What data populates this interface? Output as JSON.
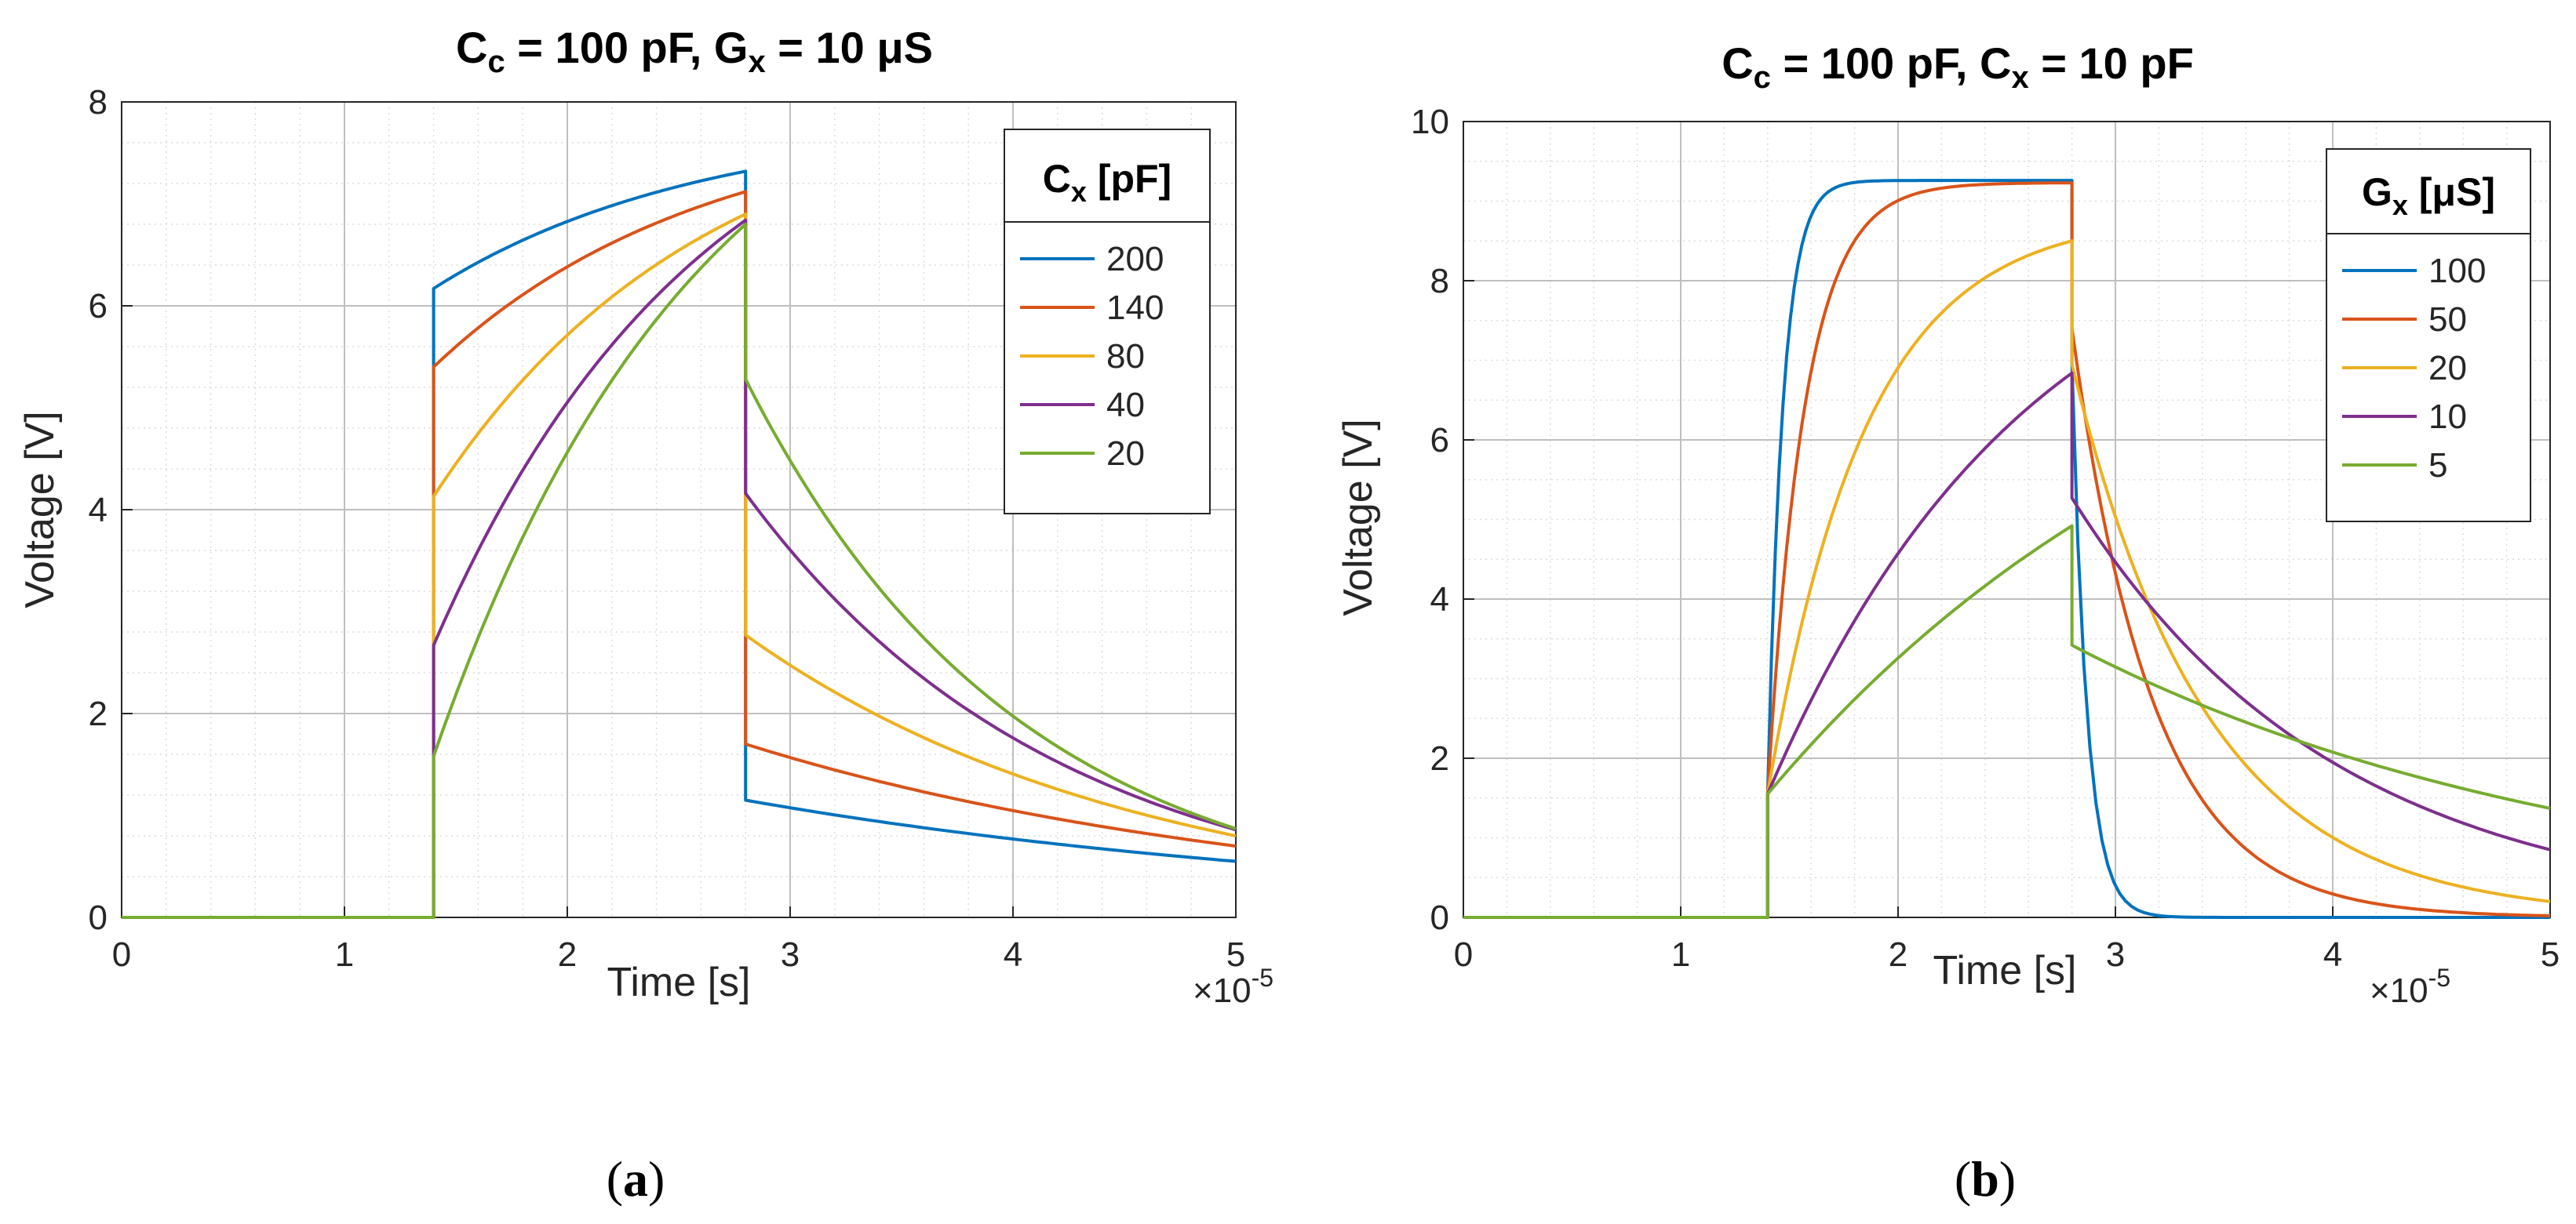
{
  "chart_data": [
    {
      "type": "line",
      "title": {
        "main": "C",
        "sub1": "c",
        "mid": " = 100 pF, G",
        "sub2": "x",
        "end": " = 10 μS"
      },
      "xlabel": "Time [s]",
      "ylabel": "Voltage [V]",
      "xlim": [
        0,
        5
      ],
      "ylim": [
        0,
        8
      ],
      "xticks": [
        "0",
        "1",
        "2",
        "3",
        "4",
        "5"
      ],
      "yticks": [
        "0",
        "2",
        "4",
        "6",
        "8"
      ],
      "exponent": {
        "base": "×10",
        "power": "-5"
      },
      "legend": {
        "title_main": "C",
        "title_sub": "x",
        "title_end": " [pF]",
        "location": "top-right"
      },
      "caption": {
        "open": "(",
        "letter": "a",
        "close": ")"
      },
      "pulse": {
        "t_on": 1.4,
        "t_off": 2.8
      },
      "series": [
        {
          "name": "200",
          "color": "#0072BD",
          "jump_on": 6.17,
          "peak": 7.32,
          "drop": 1.15,
          "end": 0.55
        },
        {
          "name": "140",
          "color": "#D95319",
          "jump_on": 5.4,
          "peak": 7.12,
          "drop": 1.7,
          "end": 0.7
        },
        {
          "name": "80",
          "color": "#EDB120",
          "jump_on": 4.13,
          "peak": 6.9,
          "drop": 2.77,
          "end": 0.8
        },
        {
          "name": "40",
          "color": "#7E2F8E",
          "jump_on": 2.67,
          "peak": 6.84,
          "drop": 4.16,
          "end": 0.86
        },
        {
          "name": "20",
          "color": "#77AC30",
          "jump_on": 1.58,
          "peak": 6.8,
          "drop": 5.28,
          "end": 0.87
        }
      ]
    },
    {
      "type": "line",
      "title": {
        "main": "C",
        "sub1": "c",
        "mid": " = 100 pF, C",
        "sub2": "x",
        "end": " = 10 pF"
      },
      "xlabel": "Time [s]",
      "ylabel": "Voltage [V]",
      "xlim": [
        0,
        5
      ],
      "ylim": [
        0,
        10
      ],
      "xticks": [
        "0",
        "1",
        "2",
        "3",
        "4",
        "5"
      ],
      "yticks": [
        "0",
        "2",
        "4",
        "6",
        "8",
        "10"
      ],
      "exponent": {
        "base": "×10",
        "power": "-5"
      },
      "legend": {
        "title_main": "G",
        "title_sub": "x",
        "title_end": " [μS]",
        "location": "top-right"
      },
      "caption": {
        "open": "(",
        "letter": "b",
        "close": ")"
      },
      "pulse": {
        "t_on": 1.4,
        "t_off": 2.8
      },
      "series": [
        {
          "name": "100",
          "color": "#0072BD",
          "jump_on": 1.55,
          "peak": 9.26,
          "drop": 6.95,
          "end": 0.0
        },
        {
          "name": "50",
          "color": "#D95319",
          "jump_on": 1.55,
          "peak": 9.23,
          "drop": 7.4,
          "end": 0.02
        },
        {
          "name": "20",
          "color": "#EDB120",
          "jump_on": 1.55,
          "peak": 8.5,
          "drop": 6.95,
          "end": 0.2
        },
        {
          "name": "10",
          "color": "#7E2F8E",
          "jump_on": 1.55,
          "peak": 6.84,
          "drop": 5.27,
          "end": 0.85
        },
        {
          "name": "5",
          "color": "#77AC30",
          "jump_on": 1.55,
          "peak": 4.92,
          "drop": 3.42,
          "end": 1.37
        }
      ]
    }
  ]
}
